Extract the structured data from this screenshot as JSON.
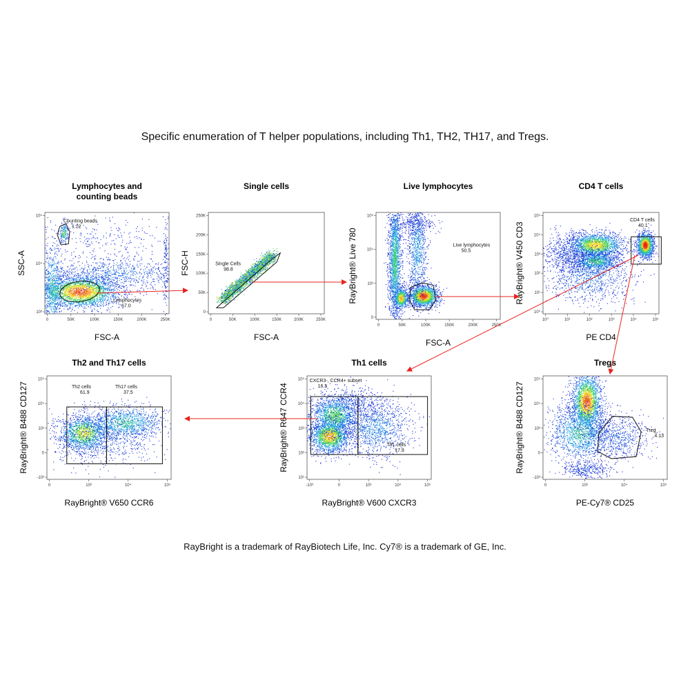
{
  "title": "Specific enumeration of T helper populations, including Th1, TH2, TH17, and Tregs.",
  "footer": "RayBright is a trademark of RayBiotech Life, Inc.  Cy7® is a trademark of GE, Inc.",
  "colors": {
    "arrow": "#e8231e",
    "gate": "#111111",
    "density_low": "#1a2dd6",
    "density_high": "#e8231e"
  },
  "chart_data": [
    {
      "id": "p1",
      "type": "scatter",
      "title_lines": [
        "Lymphocytes and",
        "counting beads"
      ],
      "xlabel": "FSC-A",
      "ylabel": "SSC-A",
      "x_ticks": [
        "0",
        "50K",
        "100K",
        "150K",
        "200K",
        "250K"
      ],
      "y_ticks": [
        "10³",
        "10⁴",
        "10⁵"
      ],
      "gates": [
        {
          "name": "Counting beads",
          "value": "1.22"
        },
        {
          "name": "Lymphocytes",
          "value": "67.0"
        }
      ]
    },
    {
      "id": "p2",
      "type": "scatter",
      "title_lines": [
        "Single cells"
      ],
      "xlabel": "FSC-A",
      "ylabel": "FSC-H",
      "x_ticks": [
        "0",
        "50K",
        "100K",
        "150K",
        "200K",
        "250K"
      ],
      "y_ticks": [
        "0",
        "50K",
        "100K",
        "150K",
        "200K",
        "250K"
      ],
      "gates": [
        {
          "name": "Single Cells",
          "value": "98.8"
        }
      ]
    },
    {
      "id": "p3",
      "type": "scatter",
      "title_lines": [
        "Live lymphocytes"
      ],
      "xlabel": "FSC-A",
      "ylabel": "RayBright® Live 780",
      "x_ticks": [
        "0",
        "50K",
        "100K",
        "150K",
        "200K",
        "250K"
      ],
      "y_ticks": [
        "0",
        "10³",
        "10⁴",
        "10⁵"
      ],
      "gates": [
        {
          "name": "Live lymphocytes",
          "value": "50.5"
        }
      ]
    },
    {
      "id": "p4",
      "type": "scatter",
      "title_lines": [
        "CD4 T cells"
      ],
      "xlabel": "PE CD4",
      "ylabel": "RayBright® V450 CD3",
      "x_ticks": [
        "10⁰",
        "10¹",
        "10²",
        "10³",
        "10⁴",
        "10⁵"
      ],
      "y_ticks": [
        "10⁰",
        "10¹",
        "10²",
        "10³",
        "10⁴",
        "10⁵"
      ],
      "gates": [
        {
          "name": "CD4 T cells",
          "value": "40.1"
        }
      ]
    },
    {
      "id": "p5",
      "type": "scatter",
      "title_lines": [
        "Th1 cells"
      ],
      "xlabel": "RayBright® V600 CXCR3",
      "ylabel": "RayBright® R647 CCR4",
      "x_ticks": [
        "-10³",
        "0",
        "10³",
        "10⁴",
        "10⁵"
      ],
      "y_ticks": [
        "10¹",
        "10²",
        "10³",
        "10⁴",
        "10⁵"
      ],
      "gates": [
        {
          "name": "CXCR3-, CCR4+ subset",
          "value": "16.5"
        },
        {
          "name": "Th1 cells",
          "value": "17.9"
        }
      ]
    },
    {
      "id": "p6",
      "type": "scatter",
      "title_lines": [
        "Th2 and Th17 cells"
      ],
      "xlabel": "RayBright® V650 CCR6",
      "ylabel": "RayBright® B488 CD127",
      "x_ticks": [
        "0",
        "10³",
        "10⁴",
        "10⁵"
      ],
      "y_ticks": [
        "-10³",
        "0",
        "10³",
        "10⁴",
        "10⁵"
      ],
      "gates": [
        {
          "name": "Th2 cells",
          "value": "61.9"
        },
        {
          "name": "Th17 cells",
          "value": "37.5"
        }
      ]
    },
    {
      "id": "p7",
      "type": "scatter",
      "title_lines": [
        "Tregs"
      ],
      "xlabel": "PE-Cy7® CD25",
      "ylabel": "RayBright® B488 CD127",
      "x_ticks": [
        "0",
        "10³",
        "10⁴",
        "10⁵"
      ],
      "y_ticks": [
        "-10³",
        "0",
        "10³",
        "10⁴",
        "10⁵"
      ],
      "gates": [
        {
          "name": "Treg",
          "value": "4.13"
        }
      ]
    }
  ]
}
